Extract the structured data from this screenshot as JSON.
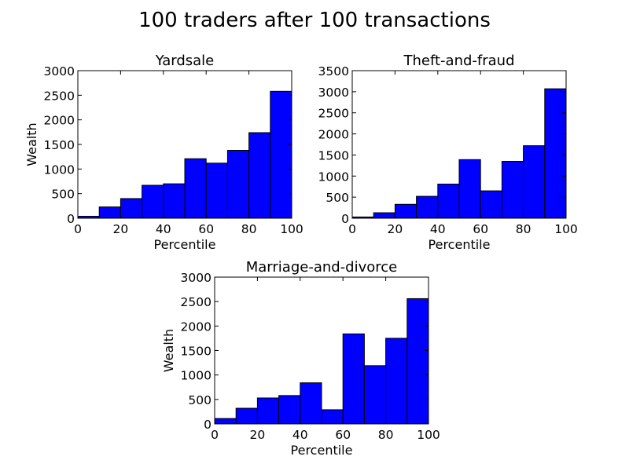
{
  "figure": {
    "title": "100 traders after 100 transactions",
    "bar_color": "#0000ff",
    "edge_color": "#000000"
  },
  "chart_data": [
    {
      "type": "bar",
      "title": "Yardsale",
      "xlabel": "Percentile",
      "ylabel": "Wealth",
      "xlim": [
        0,
        100
      ],
      "ylim": [
        0,
        3000
      ],
      "x_ticks": [
        0,
        20,
        40,
        60,
        80,
        100
      ],
      "y_ticks": [
        0,
        500,
        1000,
        1500,
        2000,
        2500,
        3000
      ],
      "bin_edges": [
        0,
        10,
        20,
        30,
        40,
        50,
        60,
        70,
        80,
        90,
        100
      ],
      "values": [
        40,
        230,
        400,
        670,
        700,
        1210,
        1120,
        1380,
        1740,
        2580
      ],
      "grid": false
    },
    {
      "type": "bar",
      "title": "Theft-and-fraud",
      "xlabel": "Percentile",
      "ylabel": "",
      "xlim": [
        0,
        100
      ],
      "ylim": [
        0,
        3500
      ],
      "x_ticks": [
        0,
        20,
        40,
        60,
        80,
        100
      ],
      "y_ticks": [
        0,
        500,
        1000,
        1500,
        2000,
        2500,
        3000,
        3500
      ],
      "bin_edges": [
        0,
        10,
        20,
        30,
        40,
        50,
        60,
        70,
        80,
        90,
        100
      ],
      "values": [
        30,
        130,
        330,
        520,
        810,
        1390,
        650,
        1350,
        1720,
        3070
      ],
      "grid": false
    },
    {
      "type": "bar",
      "title": "Marriage-and-divorce",
      "xlabel": "Percentile",
      "ylabel": "Wealth",
      "xlim": [
        0,
        100
      ],
      "ylim": [
        0,
        3000
      ],
      "x_ticks": [
        0,
        20,
        40,
        60,
        80,
        100
      ],
      "y_ticks": [
        0,
        500,
        1000,
        1500,
        2000,
        2500,
        3000
      ],
      "bin_edges": [
        0,
        10,
        20,
        30,
        40,
        50,
        60,
        70,
        80,
        90,
        100
      ],
      "values": [
        110,
        320,
        530,
        580,
        840,
        290,
        1840,
        1190,
        1750,
        2560
      ],
      "grid": false
    }
  ]
}
